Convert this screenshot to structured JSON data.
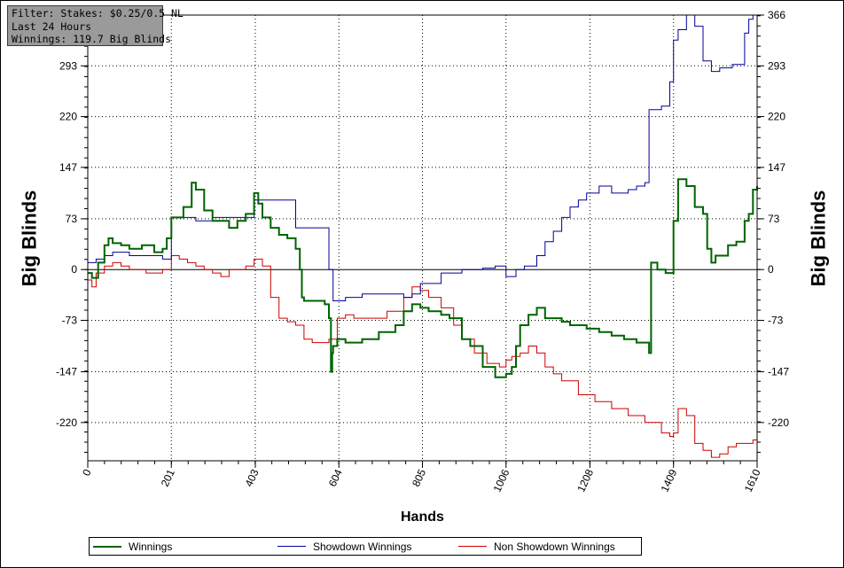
{
  "filter": {
    "line1": "Filter: Stakes: $0.25/0.5 NL",
    "line2": "Last  24 Hours",
    "line3": "Winnings: 119.7 Big Blinds"
  },
  "chart_data": {
    "type": "line",
    "title": "",
    "xlabel": "Hands",
    "ylabel": "Big Blinds",
    "xlim": [
      0,
      1610
    ],
    "ylim": [
      -275,
      366
    ],
    "x_ticks": [
      "0",
      "201",
      "403",
      "604",
      "805",
      "1006",
      "1208",
      "1409",
      "1610"
    ],
    "y_ticks": [
      "366",
      "293",
      "220",
      "147",
      "73",
      "0",
      "-73",
      "-147",
      "-220"
    ],
    "grid": true,
    "legend_position": "bottom",
    "series": [
      {
        "name": "Winnings",
        "color": "#006400",
        "x": [
          0,
          10,
          25,
          40,
          50,
          60,
          80,
          100,
          130,
          160,
          180,
          190,
          201,
          230,
          250,
          260,
          280,
          300,
          340,
          360,
          380,
          400,
          410,
          420,
          440,
          460,
          480,
          500,
          510,
          515,
          520,
          550,
          570,
          580,
          585,
          588,
          590,
          600,
          620,
          660,
          700,
          740,
          760,
          780,
          800,
          820,
          850,
          870,
          900,
          920,
          950,
          980,
          1006,
          1020,
          1030,
          1040,
          1060,
          1080,
          1100,
          1140,
          1160,
          1200,
          1230,
          1260,
          1290,
          1320,
          1350,
          1355,
          1370,
          1390,
          1400,
          1409,
          1420,
          1440,
          1460,
          1480,
          1490,
          1500,
          1510,
          1540,
          1560,
          1580,
          1590,
          1600,
          1610
        ],
        "values": [
          -5,
          -12,
          10,
          35,
          45,
          38,
          35,
          30,
          35,
          25,
          30,
          45,
          75,
          90,
          125,
          115,
          85,
          70,
          60,
          70,
          80,
          110,
          95,
          75,
          60,
          50,
          45,
          30,
          0,
          -40,
          -45,
          -45,
          -50,
          -70,
          -147,
          -120,
          -110,
          -100,
          -105,
          -100,
          -90,
          -80,
          -60,
          -50,
          -55,
          -60,
          -65,
          -70,
          -100,
          -110,
          -140,
          -155,
          -150,
          -140,
          -110,
          -80,
          -65,
          -55,
          -70,
          -75,
          -80,
          -85,
          -90,
          -95,
          -100,
          -105,
          -120,
          10,
          0,
          -5,
          -5,
          70,
          130,
          120,
          90,
          80,
          30,
          10,
          20,
          35,
          40,
          70,
          80,
          115,
          120
        ]
      },
      {
        "name": "Showdown Winnings",
        "color": "#000099",
        "x": [
          0,
          10,
          20,
          40,
          60,
          100,
          140,
          180,
          201,
          240,
          260,
          300,
          340,
          400,
          420,
          460,
          500,
          520,
          560,
          580,
          590,
          620,
          660,
          700,
          760,
          780,
          800,
          850,
          900,
          950,
          980,
          1006,
          1030,
          1050,
          1080,
          1100,
          1120,
          1140,
          1160,
          1180,
          1200,
          1230,
          1260,
          1300,
          1320,
          1340,
          1350,
          1380,
          1400,
          1409,
          1420,
          1440,
          1460,
          1480,
          1500,
          1520,
          1550,
          1580,
          1590,
          1600,
          1610
        ],
        "values": [
          10,
          10,
          15,
          20,
          25,
          20,
          20,
          15,
          75,
          75,
          70,
          75,
          75,
          100,
          100,
          100,
          60,
          60,
          60,
          0,
          -45,
          -40,
          -35,
          -35,
          -40,
          -35,
          -20,
          -5,
          0,
          2,
          5,
          -10,
          0,
          5,
          20,
          40,
          55,
          75,
          90,
          100,
          110,
          120,
          110,
          115,
          120,
          125,
          230,
          235,
          270,
          330,
          345,
          366,
          350,
          300,
          285,
          290,
          295,
          340,
          360,
          366,
          366
        ]
      },
      {
        "name": "Non Showdown Winnings",
        "color": "#cc0000",
        "x": [
          0,
          10,
          20,
          40,
          60,
          80,
          100,
          140,
          180,
          201,
          220,
          240,
          260,
          280,
          300,
          320,
          340,
          380,
          400,
          420,
          440,
          460,
          480,
          500,
          520,
          540,
          560,
          580,
          600,
          620,
          640,
          680,
          720,
          760,
          780,
          800,
          820,
          850,
          880,
          900,
          930,
          960,
          990,
          1006,
          1020,
          1040,
          1060,
          1080,
          1100,
          1120,
          1140,
          1180,
          1220,
          1260,
          1300,
          1340,
          1380,
          1400,
          1409,
          1420,
          1440,
          1460,
          1480,
          1500,
          1520,
          1540,
          1560,
          1580,
          1600,
          1610
        ],
        "values": [
          -15,
          -25,
          -5,
          5,
          10,
          5,
          0,
          -5,
          0,
          20,
          15,
          10,
          5,
          0,
          -5,
          -10,
          0,
          5,
          15,
          5,
          -40,
          -70,
          -75,
          -80,
          -100,
          -105,
          -105,
          -100,
          -70,
          -65,
          -70,
          -70,
          -60,
          -40,
          -25,
          -30,
          -40,
          -55,
          -80,
          -100,
          -120,
          -135,
          -140,
          -130,
          -125,
          -120,
          -110,
          -120,
          -140,
          -150,
          -160,
          -180,
          -190,
          -200,
          -210,
          -220,
          -235,
          -240,
          -235,
          -200,
          -210,
          -250,
          -260,
          -270,
          -265,
          -255,
          -250,
          -250,
          -245,
          -240
        ]
      }
    ]
  },
  "legend": {
    "winnings": "Winnings",
    "showdown": "Showdown Winnings",
    "non_showdown": "Non Showdown Winnings"
  }
}
